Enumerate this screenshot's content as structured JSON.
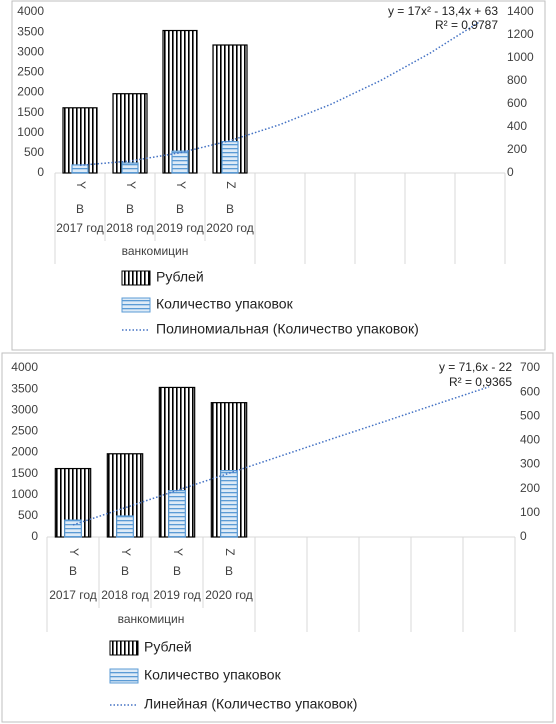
{
  "chart_data": [
    {
      "type": "bar",
      "categories": [
        "2017 год",
        "2018 год",
        "2019 год",
        "2020 год",
        null,
        null,
        null,
        null,
        null
      ],
      "subcategories": [
        "B",
        "B",
        "B",
        "B",
        null,
        null,
        null,
        null,
        null
      ],
      "inner_categories": [
        "Y",
        "Y",
        "Y",
        "Z",
        null,
        null,
        null,
        null,
        null
      ],
      "group_label": "ванкомицин",
      "ylim": [
        0,
        4000
      ],
      "yticks": [
        0,
        500,
        1000,
        1500,
        2000,
        2500,
        3000,
        3500,
        4000
      ],
      "y2lim": [
        0,
        1400
      ],
      "y2ticks": [
        0,
        200,
        400,
        600,
        800,
        1000,
        1200,
        1400
      ],
      "series": [
        {
          "name": "Рублей",
          "color": "#000000",
          "pattern": "vertical",
          "values": [
            1620,
            1970,
            3540,
            3180,
            null,
            null,
            null,
            null,
            null
          ]
        },
        {
          "name": "Количество упаковок",
          "color": "#5b9bd5",
          "pattern": "horizontal",
          "axis": "y2",
          "values": [
            70,
            87,
            190,
            273,
            null,
            null,
            null,
            null,
            null
          ]
        },
        {
          "name": "Полиномиальная (Количество упаковок)",
          "color": "#4472c4",
          "kind": "trendline",
          "axis": "y2",
          "values": [
            67,
            104,
            176,
            281,
            421,
            594,
            801,
            1042,
            1317
          ]
        }
      ],
      "annotations": [
        "y = 17x² - 13,4x + 63",
        "R² = 0,9787"
      ]
    },
    {
      "type": "bar",
      "categories": [
        "2017 год",
        "2018 год",
        "2019 год",
        "2020 год",
        null,
        null,
        null,
        null,
        null
      ],
      "subcategories": [
        "B",
        "B",
        "B",
        "B",
        null,
        null,
        null,
        null,
        null
      ],
      "inner_categories": [
        "Y",
        "Y",
        "Y",
        "Z",
        null,
        null,
        null,
        null,
        null
      ],
      "group_label": "ванкомицин",
      "ylim": [
        0,
        4000
      ],
      "yticks": [
        0,
        500,
        1000,
        1500,
        2000,
        2500,
        3000,
        3500,
        4000
      ],
      "y2lim": [
        0,
        700
      ],
      "y2ticks": [
        0,
        100,
        200,
        300,
        400,
        500,
        600,
        700
      ],
      "series": [
        {
          "name": "Рублей",
          "color": "#000000",
          "pattern": "vertical",
          "values": [
            1620,
            1970,
            3540,
            3180,
            null,
            null,
            null,
            null,
            null
          ]
        },
        {
          "name": "Количество упаковок",
          "color": "#5b9bd5",
          "pattern": "horizontal",
          "axis": "y2",
          "values": [
            70,
            87,
            192,
            275,
            null,
            null,
            null,
            null,
            null
          ]
        },
        {
          "name": "Линейная (Количество упаковок)",
          "color": "#4472c4",
          "kind": "trendline",
          "axis": "y2",
          "values": [
            50,
            121,
            193,
            264,
            336,
            408,
            479,
            551,
            622
          ]
        }
      ],
      "annotations": [
        "y = 71,6x - 22",
        "R² = 0,9365"
      ]
    }
  ]
}
